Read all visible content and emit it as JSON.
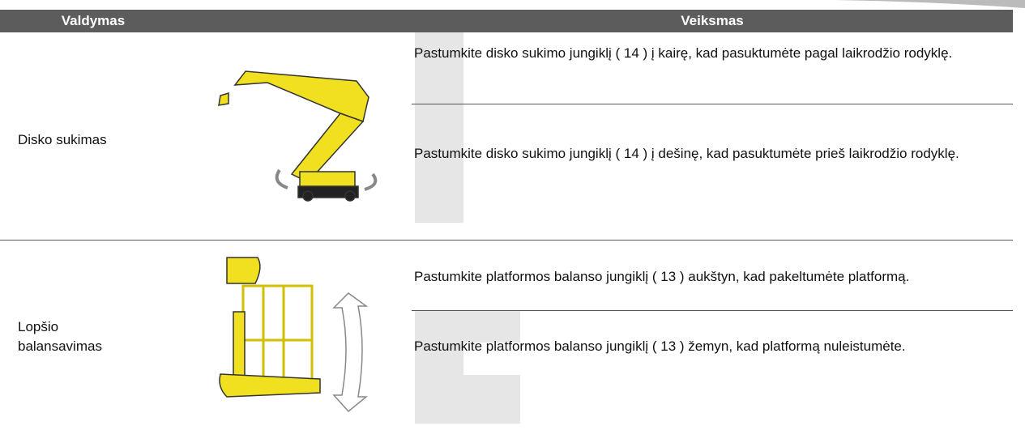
{
  "table": {
    "headers": [
      "Valdymas",
      "Veiksmas"
    ],
    "rows": [
      {
        "control": "Disko sukimas",
        "actions": [
          "Pastumkite disko sukimo jungiklį ( 14 ) į kairę, kad pasuktumėte pagal laikrodžio rodyklę.",
          "Pastumkite disko sukimo jungiklį ( 14 ) į dešinę, kad pasuktumėte prieš laikrodžio rodyklę."
        ]
      },
      {
        "control": "Lopšio balansavimas",
        "actions": [
          "Pastumkite platformos balanso jungiklį ( 13 ) aukštyn, kad pakeltumėte platformą.",
          "Pastumkite platformos balanso jungiklį ( 13 ) žemyn, kad platformą nuleistumėte."
        ]
      }
    ]
  }
}
